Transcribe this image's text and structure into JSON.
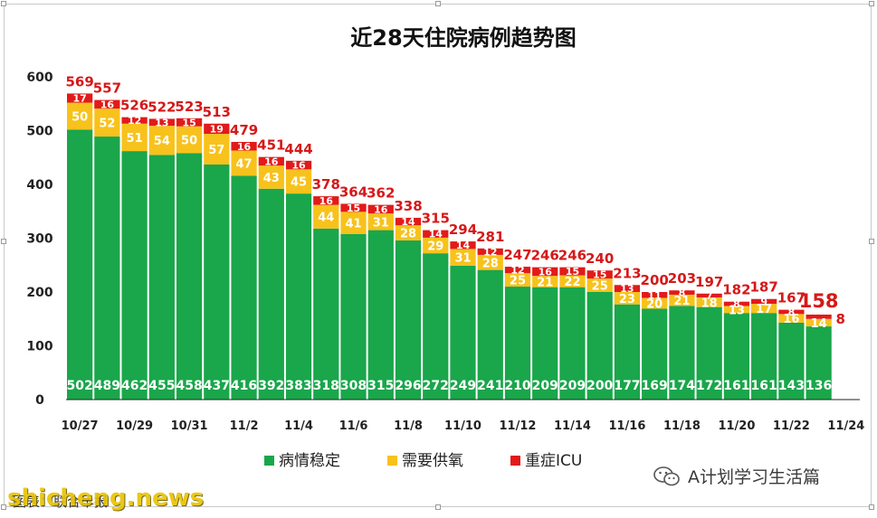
{
  "chart_data": {
    "type": "bar",
    "stacked": true,
    "title": "近28天住院病例趋势图",
    "categories": [
      "10/27",
      "10/28",
      "10/29",
      "10/30",
      "10/31",
      "11/1",
      "11/2",
      "11/3",
      "11/4",
      "11/5",
      "11/6",
      "11/7",
      "11/8",
      "11/9",
      "11/10",
      "11/11",
      "11/12",
      "11/13",
      "11/14",
      "11/15",
      "11/16",
      "11/17",
      "11/18",
      "11/19",
      "11/20",
      "11/21",
      "11/22",
      "11/23"
    ],
    "x_tick_labels": [
      "10/27",
      "10/29",
      "10/31",
      "11/2",
      "11/4",
      "11/6",
      "11/8",
      "11/10",
      "11/12",
      "11/14",
      "11/16",
      "11/18",
      "11/20",
      "11/22",
      "11/24"
    ],
    "series": [
      {
        "name": "病情稳定",
        "color": "#1aa64b",
        "values": [
          502,
          489,
          462,
          455,
          458,
          437,
          416,
          392,
          383,
          318,
          308,
          315,
          296,
          272,
          249,
          241,
          210,
          209,
          209,
          200,
          177,
          169,
          174,
          172,
          161,
          161,
          143,
          136
        ]
      },
      {
        "name": "需要供氧",
        "color": "#f8c21c",
        "values": [
          50,
          52,
          51,
          54,
          50,
          57,
          47,
          43,
          45,
          44,
          41,
          31,
          28,
          29,
          31,
          28,
          25,
          21,
          22,
          25,
          23,
          20,
          21,
          18,
          13,
          17,
          16,
          14
        ]
      },
      {
        "name": "重症ICU",
        "color": "#e21a1a",
        "values": [
          17,
          16,
          12,
          13,
          15,
          19,
          16,
          16,
          16,
          16,
          15,
          16,
          14,
          14,
          14,
          12,
          12,
          16,
          15,
          15,
          13,
          11,
          8,
          7,
          8,
          9,
          8,
          8
        ]
      }
    ],
    "totals": [
      569,
      557,
      526,
      522,
      523,
      513,
      479,
      451,
      444,
      378,
      364,
      362,
      338,
      315,
      294,
      281,
      247,
      246,
      246,
      240,
      213,
      200,
      203,
      197,
      182,
      187,
      167,
      158
    ],
    "ylim": [
      0,
      600
    ],
    "y_ticks": [
      0,
      100,
      200,
      300,
      400,
      500,
      600
    ],
    "grid": false,
    "legend_position": "bottom",
    "colors": {
      "label_red": "#d61818",
      "axis": "#222222"
    }
  },
  "footer": {
    "credit": "图表：联合早报",
    "watermark": "shicheng.news",
    "wechat_account": "A计划学习生活篇"
  }
}
